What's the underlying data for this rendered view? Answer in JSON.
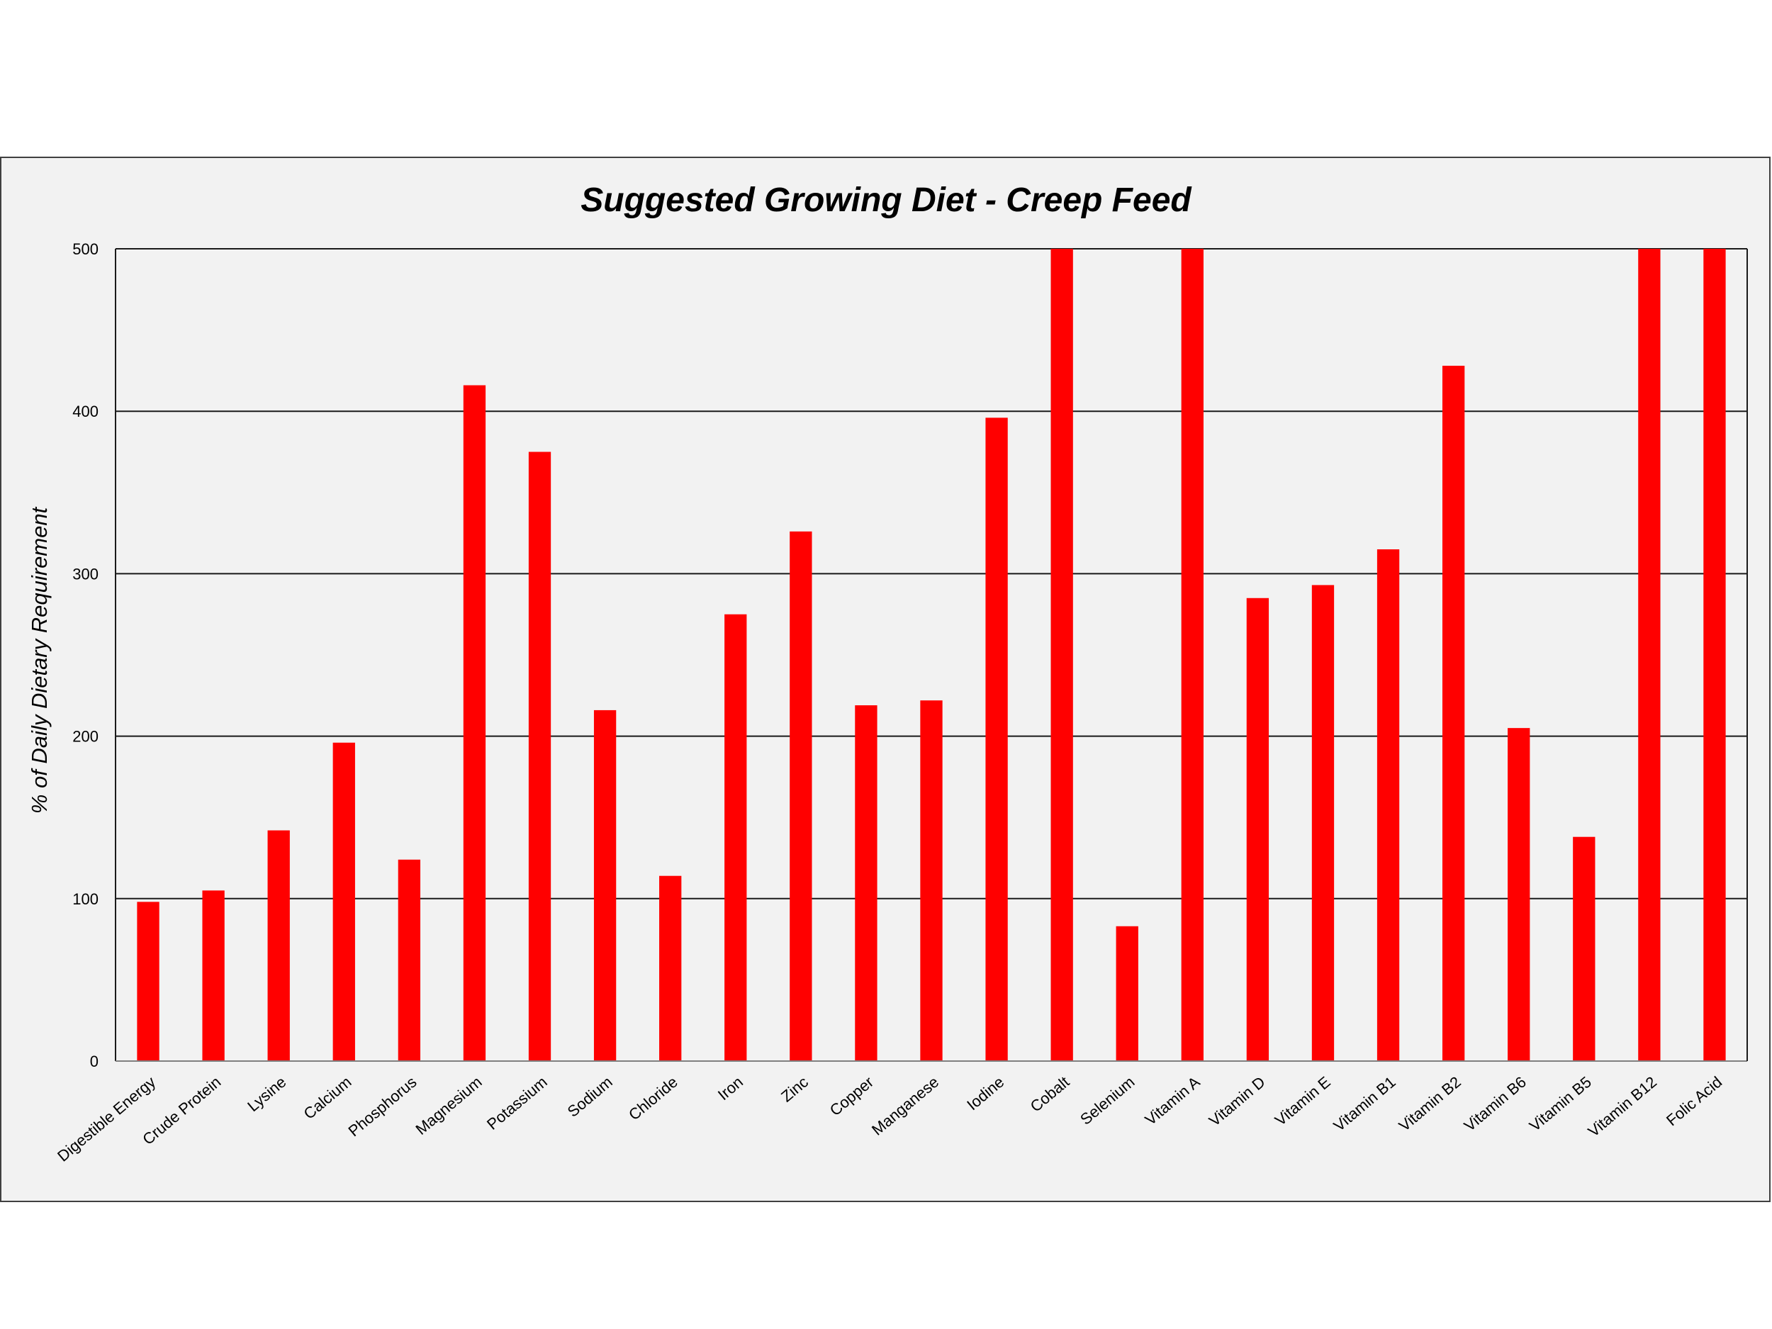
{
  "chart_data": {
    "type": "bar",
    "title": "Suggested Growing Diet - Creep Feed",
    "xlabel": "",
    "ylabel": "% of Daily Dietary Requirement",
    "ylim": [
      0,
      500
    ],
    "yticks": [
      0,
      100,
      200,
      300,
      400,
      500
    ],
    "grid": true,
    "legend": "none",
    "bar_color": "#ff0000",
    "categories": [
      "Digestible Energy",
      "Crude Protein",
      "Lysine",
      "Calcium",
      "Phosphorus",
      "Magnesium",
      "Potassium",
      "Sodium",
      "Chloride",
      "Iron",
      "Zinc",
      "Copper",
      "Manganese",
      "Iodine",
      "Cobalt",
      "Selenium",
      "Vitamin A",
      "Vitamin D",
      "Vitamin E",
      "Vitamin B1",
      "Vitamin B2",
      "Vitamin B6",
      "Vitamin B5",
      "Vitamin B12",
      "Folic Acid"
    ],
    "values": [
      98,
      105,
      142,
      196,
      124,
      416,
      375,
      216,
      114,
      275,
      326,
      219,
      222,
      396,
      500,
      83,
      500,
      285,
      293,
      315,
      428,
      205,
      138,
      500,
      500
    ]
  }
}
